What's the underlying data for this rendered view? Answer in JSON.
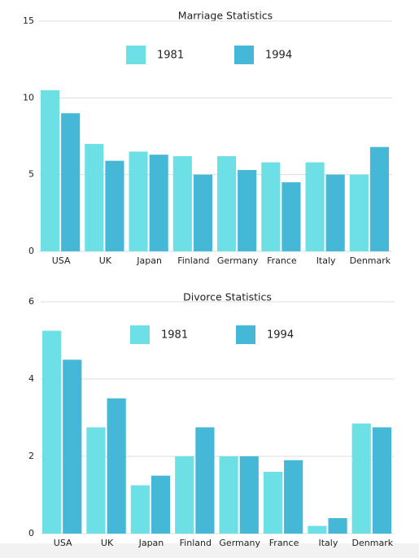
{
  "chart_data": [
    {
      "type": "bar",
      "title": "Marriage Statistics",
      "categories": [
        "USA",
        "UK",
        "Japan",
        "Finland",
        "Germany",
        "France",
        "Italy",
        "Denmark"
      ],
      "series": [
        {
          "name": "1981",
          "color": "#6de0e6",
          "values": [
            10.5,
            7.0,
            6.5,
            6.2,
            6.2,
            5.8,
            5.8,
            5.0
          ]
        },
        {
          "name": "1994",
          "color": "#44b8d6",
          "values": [
            9.0,
            5.9,
            6.3,
            5.0,
            5.3,
            4.5,
            5.0,
            6.8
          ]
        }
      ],
      "ylim": [
        0,
        15
      ],
      "yticks": [
        0,
        5,
        10,
        15
      ],
      "grid": true,
      "legend": "top"
    },
    {
      "type": "bar",
      "title": "Divorce Statistics",
      "categories": [
        "USA",
        "UK",
        "Japan",
        "Finland",
        "Germany",
        "France",
        "Italy",
        "Denmark"
      ],
      "series": [
        {
          "name": "1981",
          "color": "#6de0e6",
          "values": [
            5.25,
            2.75,
            1.25,
            2.0,
            2.0,
            1.6,
            0.2,
            2.85
          ]
        },
        {
          "name": "1994",
          "color": "#44b8d6",
          "values": [
            4.5,
            3.5,
            1.5,
            2.75,
            2.0,
            1.9,
            0.4,
            2.75
          ]
        }
      ],
      "ylim": [
        0,
        6
      ],
      "yticks": [
        0,
        2,
        4,
        6
      ],
      "grid": true,
      "legend": "top"
    }
  ]
}
